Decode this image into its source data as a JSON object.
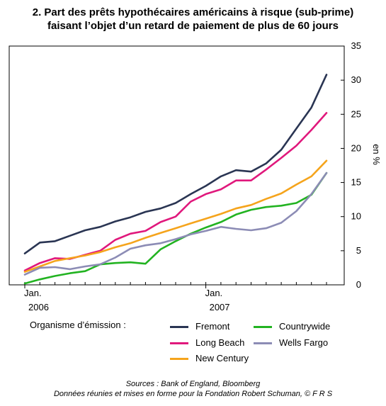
{
  "title_line1": "2.  Part des prêts hypothécaires américains à risque (sub-prime)",
  "title_line2": "faisant l’objet d’un retard de paiement de plus de 60 jours",
  "legend_heading": "Organisme d’émission :",
  "source_line1": "Sources : Bank of England, Bloomberg",
  "source_line2": "Données réunies et mises en forme pour la Fondation Robert Schuman, © F R S",
  "chart_data": {
    "type": "line",
    "title": "2.  Part des prêts hypothécaires américains à risque (sub-prime) faisant l’objet d’un retard de paiement de plus de 60 jours",
    "ylabel": "en %",
    "xlabel": "",
    "ylim": [
      0,
      35
    ],
    "yticks": [
      0,
      5,
      10,
      15,
      20,
      25,
      30,
      35
    ],
    "y_axis_position": "right",
    "grid": false,
    "x_ticks": [
      {
        "month": "Jan.",
        "year": "2006",
        "index": 0
      },
      {
        "month": "Jan.",
        "year": "2007",
        "index": 12
      }
    ],
    "x": [
      "2006-01",
      "2006-02",
      "2006-03",
      "2006-04",
      "2006-05",
      "2006-06",
      "2006-07",
      "2006-08",
      "2006-09",
      "2006-10",
      "2006-11",
      "2006-12",
      "2007-01",
      "2007-02",
      "2007-03",
      "2007-04",
      "2007-05",
      "2007-06",
      "2007-07",
      "2007-08",
      "2007-09"
    ],
    "series": [
      {
        "name": "Fremont",
        "color": "#2a3553",
        "values": [
          4.6,
          6.2,
          6.4,
          7.2,
          8.0,
          8.5,
          9.3,
          9.9,
          10.7,
          11.2,
          12.0,
          13.3,
          14.5,
          15.9,
          16.8,
          16.6,
          17.8,
          19.8,
          22.9,
          26.0,
          30.8
        ]
      },
      {
        "name": "Long Beach",
        "color": "#e0187c",
        "values": [
          2.1,
          3.2,
          3.9,
          3.8,
          4.4,
          5.0,
          6.6,
          7.5,
          7.9,
          9.2,
          10.0,
          12.2,
          13.3,
          14.0,
          15.3,
          15.3,
          16.9,
          18.6,
          20.4,
          22.7,
          25.2
        ]
      },
      {
        "name": "New Century",
        "color": "#f5a41c",
        "values": [
          1.9,
          2.7,
          3.5,
          3.9,
          4.3,
          4.8,
          5.5,
          6.1,
          6.9,
          7.6,
          8.3,
          9.0,
          9.7,
          10.4,
          11.2,
          11.7,
          12.6,
          13.4,
          14.7,
          15.9,
          18.2
        ]
      },
      {
        "name": "Countrywide",
        "color": "#22b321",
        "values": [
          0.2,
          0.8,
          1.3,
          1.7,
          2.0,
          3.0,
          3.2,
          3.3,
          3.1,
          5.2,
          6.4,
          7.5,
          8.4,
          9.2,
          10.3,
          11.0,
          11.4,
          11.6,
          12.0,
          13.2,
          16.4
        ]
      },
      {
        "name": "Wells Fargo",
        "color": "#8c8cb5",
        "values": [
          1.5,
          2.5,
          2.6,
          2.3,
          2.7,
          3.0,
          4.0,
          5.3,
          5.8,
          6.1,
          6.7,
          7.4,
          7.9,
          8.5,
          8.2,
          8.0,
          8.3,
          9.1,
          10.8,
          13.3,
          16.4
        ]
      }
    ],
    "legend_location": "bottom"
  }
}
